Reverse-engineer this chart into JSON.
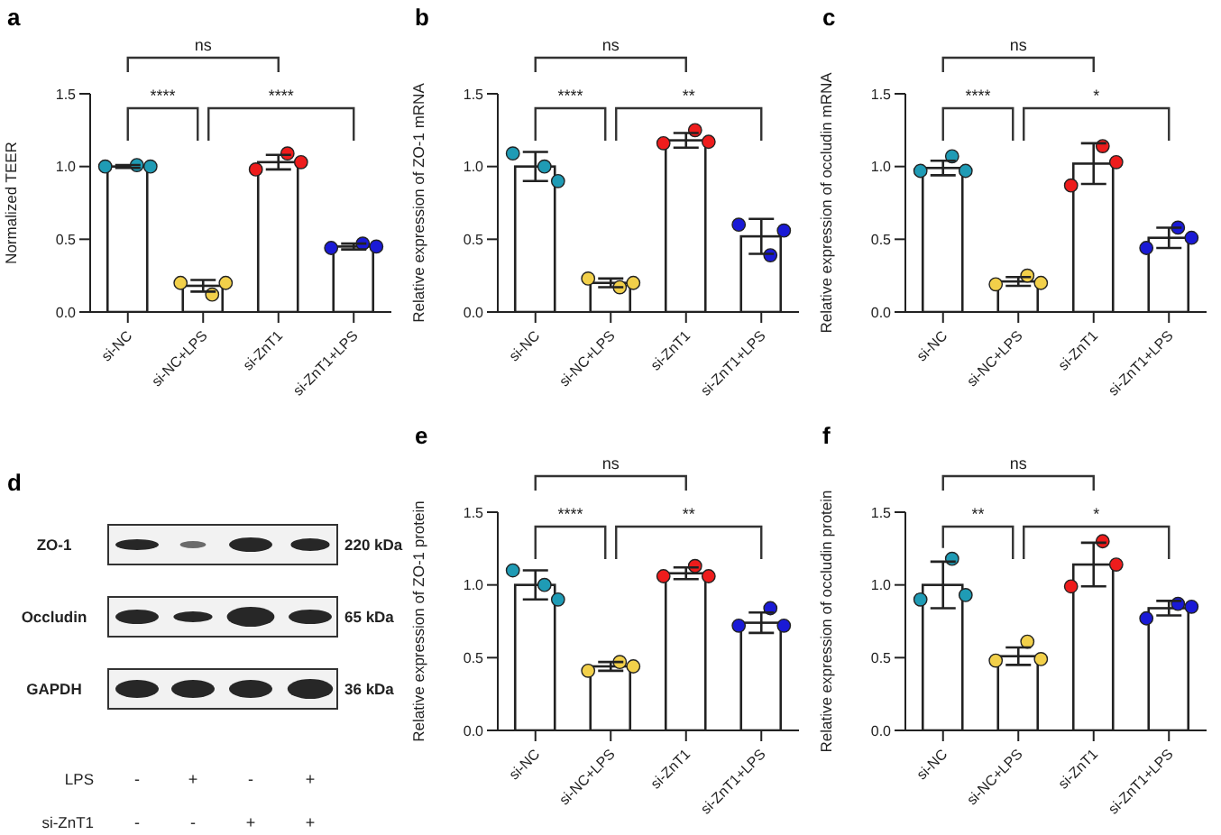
{
  "chart_data": [
    {
      "type": "bar",
      "title": "a",
      "ylabel": "Normalized TEER",
      "categories": [
        "si-NC",
        "si-NC+LPS",
        "si-ZnT1",
        "si-ZnT1+LPS"
      ],
      "ylim": [
        0,
        1.5
      ],
      "yticks": [
        {
          "value": 0,
          "label": "0.0"
        },
        {
          "value": 0.5,
          "label": "0.5"
        },
        {
          "value": 1,
          "label": "1.0"
        },
        {
          "value": 1.5,
          "label": "1.5"
        }
      ],
      "marker": "circle",
      "annotations": [
        "ns",
        "****",
        "****"
      ],
      "series": [
        {
          "type": "bar",
          "color": "#ffffff",
          "values": [
            1.0,
            0.18,
            1.03,
            0.45
          ],
          "errors": [
            0.01,
            0.04,
            0.05,
            0.02
          ]
        },
        {
          "type": "scatter",
          "color": "#1f9bb5",
          "x": [
            "si-NC",
            "si-NC",
            "si-NC"
          ],
          "values": [
            1.0,
            1.01,
            1.0
          ]
        },
        {
          "type": "scatter",
          "color": "#f2d04a",
          "x": [
            "si-NC+LPS",
            "si-NC+LPS",
            "si-NC+LPS"
          ],
          "values": [
            0.2,
            0.12,
            0.2
          ]
        },
        {
          "type": "scatter",
          "color": "#ee1c1c",
          "x": [
            "si-ZnT1",
            "si-ZnT1",
            "si-ZnT1"
          ],
          "values": [
            0.98,
            1.09,
            1.03
          ]
        },
        {
          "type": "scatter",
          "color": "#1a1ad6",
          "x": [
            "si-ZnT1+LPS",
            "si-ZnT1+LPS",
            "si-ZnT1+LPS"
          ],
          "values": [
            0.44,
            0.47,
            0.45
          ]
        }
      ]
    },
    {
      "type": "bar",
      "title": "b",
      "ylabel": "Relative expression of ZO-1 mRNA",
      "categories": [
        "si-NC",
        "si-NC+LPS",
        "si-ZnT1",
        "si-ZnT1+LPS"
      ],
      "ylim": [
        0,
        1.5
      ],
      "yticks": [
        {
          "value": 0,
          "label": "0.0"
        },
        {
          "value": 0.5,
          "label": "0.5"
        },
        {
          "value": 1,
          "label": "1.0"
        },
        {
          "value": 1.5,
          "label": "1.5"
        }
      ],
      "marker": "circle",
      "annotations": [
        "ns",
        "****",
        "**"
      ],
      "series": [
        {
          "type": "bar",
          "color": "#ffffff",
          "values": [
            1.0,
            0.2,
            1.18,
            0.52
          ],
          "errors": [
            0.1,
            0.03,
            0.05,
            0.12
          ]
        },
        {
          "type": "scatter",
          "color": "#1f9bb5",
          "x": [
            "si-NC",
            "si-NC",
            "si-NC"
          ],
          "values": [
            1.09,
            1.0,
            0.9
          ]
        },
        {
          "type": "scatter",
          "color": "#f2d04a",
          "x": [
            "si-NC+LPS",
            "si-NC+LPS",
            "si-NC+LPS"
          ],
          "values": [
            0.23,
            0.17,
            0.2
          ]
        },
        {
          "type": "scatter",
          "color": "#ee1c1c",
          "x": [
            "si-ZnT1",
            "si-ZnT1",
            "si-ZnT1"
          ],
          "values": [
            1.16,
            1.25,
            1.17
          ]
        },
        {
          "type": "scatter",
          "color": "#1a1ad6",
          "x": [
            "si-ZnT1+LPS",
            "si-ZnT1+LPS",
            "si-ZnT1+LPS"
          ],
          "values": [
            0.6,
            0.39,
            0.56
          ]
        }
      ]
    },
    {
      "type": "bar",
      "title": "c",
      "ylabel": "Relative expression of occludin mRNA",
      "categories": [
        "si-NC",
        "si-NC+LPS",
        "si-ZnT1",
        "si-ZnT1+LPS"
      ],
      "ylim": [
        0,
        1.5
      ],
      "yticks": [
        {
          "value": 0,
          "label": "0.0"
        },
        {
          "value": 0.5,
          "label": "0.5"
        },
        {
          "value": 1,
          "label": "1.0"
        },
        {
          "value": 1.5,
          "label": "1.5"
        }
      ],
      "marker": "circle",
      "annotations": [
        "ns",
        "****",
        "*"
      ],
      "series": [
        {
          "type": "bar",
          "color": "#ffffff",
          "values": [
            0.99,
            0.21,
            1.02,
            0.51
          ],
          "errors": [
            0.05,
            0.03,
            0.14,
            0.07
          ]
        },
        {
          "type": "scatter",
          "color": "#1f9bb5",
          "x": [
            "si-NC",
            "si-NC",
            "si-NC"
          ],
          "values": [
            0.97,
            1.07,
            0.97
          ]
        },
        {
          "type": "scatter",
          "color": "#f2d04a",
          "x": [
            "si-NC+LPS",
            "si-NC+LPS",
            "si-NC+LPS"
          ],
          "values": [
            0.19,
            0.25,
            0.2
          ]
        },
        {
          "type": "scatter",
          "color": "#ee1c1c",
          "x": [
            "si-ZnT1",
            "si-ZnT1",
            "si-ZnT1"
          ],
          "values": [
            0.87,
            1.14,
            1.03
          ]
        },
        {
          "type": "scatter",
          "color": "#1a1ad6",
          "x": [
            "si-ZnT1+LPS",
            "si-ZnT1+LPS",
            "si-ZnT1+LPS"
          ],
          "values": [
            0.44,
            0.58,
            0.51
          ]
        }
      ]
    },
    {
      "type": "other",
      "title": "d",
      "annotations": [
        "ZO-1",
        "Occludin",
        "GAPDH",
        "220 kDa",
        "65 kDa",
        "36 kDa",
        "LPS",
        "si-ZnT1",
        "-",
        "+",
        "-",
        "+",
        "-",
        "-",
        "+",
        "+"
      ]
    },
    {
      "type": "bar",
      "title": "e",
      "ylabel": "Relative expression of ZO-1 protein",
      "categories": [
        "si-NC",
        "si-NC+LPS",
        "si-ZnT1",
        "si-ZnT1+LPS"
      ],
      "ylim": [
        0,
        1.5
      ],
      "yticks": [
        {
          "value": 0,
          "label": "0.0"
        },
        {
          "value": 0.5,
          "label": "0.5"
        },
        {
          "value": 1,
          "label": "1.0"
        },
        {
          "value": 1.5,
          "label": "1.5"
        }
      ],
      "marker": "circle",
      "annotations": [
        "ns",
        "****",
        "**"
      ],
      "series": [
        {
          "type": "bar",
          "color": "#ffffff",
          "values": [
            1.0,
            0.44,
            1.08,
            0.74
          ],
          "errors": [
            0.1,
            0.03,
            0.04,
            0.07
          ]
        },
        {
          "type": "scatter",
          "color": "#1f9bb5",
          "x": [
            "si-NC",
            "si-NC",
            "si-NC"
          ],
          "values": [
            1.1,
            1.0,
            0.9
          ]
        },
        {
          "type": "scatter",
          "color": "#f2d04a",
          "x": [
            "si-NC+LPS",
            "si-NC+LPS",
            "si-NC+LPS"
          ],
          "values": [
            0.41,
            0.47,
            0.44
          ]
        },
        {
          "type": "scatter",
          "color": "#ee1c1c",
          "x": [
            "si-ZnT1",
            "si-ZnT1",
            "si-ZnT1"
          ],
          "values": [
            1.06,
            1.13,
            1.06
          ]
        },
        {
          "type": "scatter",
          "color": "#1a1ad6",
          "x": [
            "si-ZnT1+LPS",
            "si-ZnT1+LPS",
            "si-ZnT1+LPS"
          ],
          "values": [
            0.72,
            0.84,
            0.72
          ]
        }
      ]
    },
    {
      "type": "bar",
      "title": "f",
      "ylabel": "Relative expression of occludin protein",
      "categories": [
        "si-NC",
        "si-NC+LPS",
        "si-ZnT1",
        "si-ZnT1+LPS"
      ],
      "ylim": [
        0,
        1.5
      ],
      "yticks": [
        {
          "value": 0,
          "label": "0.0"
        },
        {
          "value": 0.5,
          "label": "0.5"
        },
        {
          "value": 1,
          "label": "1.0"
        },
        {
          "value": 1.5,
          "label": "1.5"
        }
      ],
      "marker": "circle",
      "annotations": [
        "ns",
        "**",
        "*"
      ],
      "series": [
        {
          "type": "bar",
          "color": "#ffffff",
          "values": [
            1.0,
            0.51,
            1.14,
            0.84
          ],
          "errors": [
            0.16,
            0.06,
            0.15,
            0.05
          ]
        },
        {
          "type": "scatter",
          "color": "#1f9bb5",
          "x": [
            "si-NC",
            "si-NC",
            "si-NC"
          ],
          "values": [
            0.9,
            1.18,
            0.93
          ]
        },
        {
          "type": "scatter",
          "color": "#f2d04a",
          "x": [
            "si-NC+LPS",
            "si-NC+LPS",
            "si-NC+LPS"
          ],
          "values": [
            0.48,
            0.61,
            0.49
          ]
        },
        {
          "type": "scatter",
          "color": "#ee1c1c",
          "x": [
            "si-ZnT1",
            "si-ZnT1",
            "si-ZnT1"
          ],
          "values": [
            0.99,
            1.3,
            1.14
          ]
        },
        {
          "type": "scatter",
          "color": "#1a1ad6",
          "x": [
            "si-ZnT1+LPS",
            "si-ZnT1+LPS",
            "si-ZnT1+LPS"
          ],
          "values": [
            0.77,
            0.87,
            0.85
          ]
        }
      ]
    }
  ]
}
